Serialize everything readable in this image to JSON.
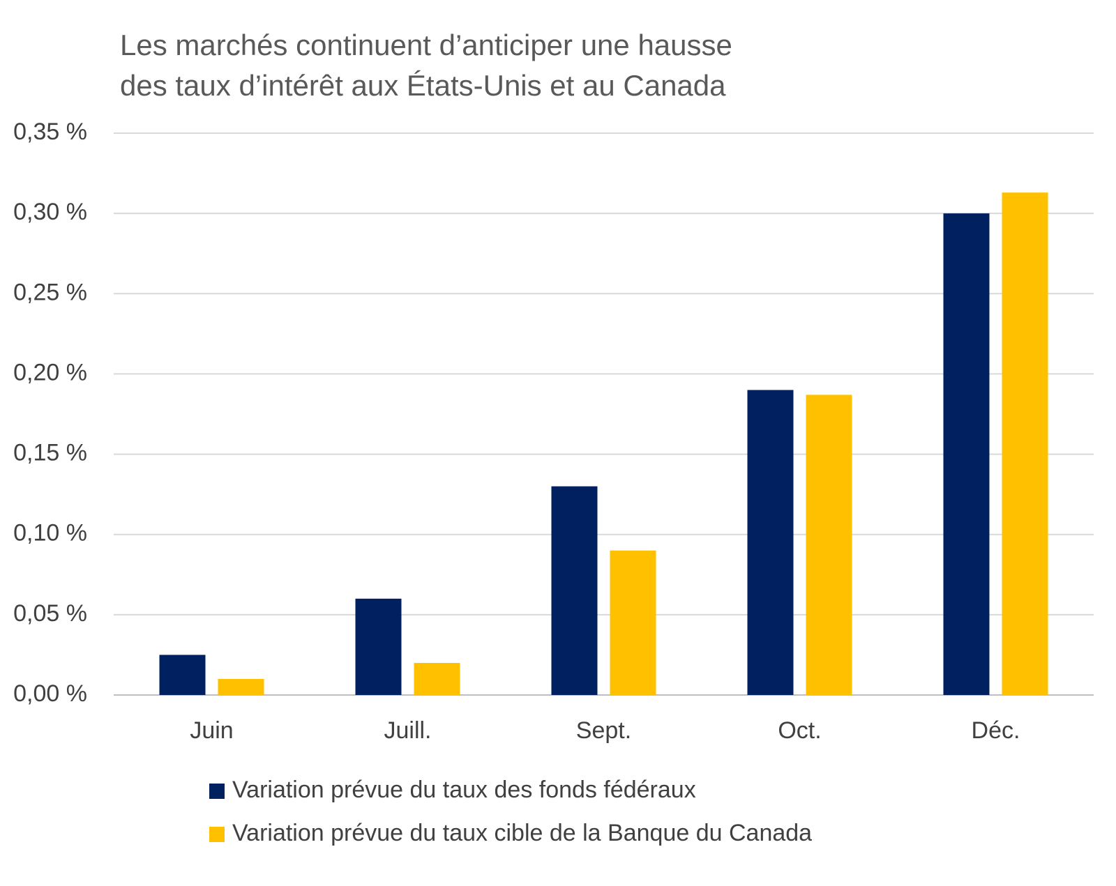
{
  "chart_data": {
    "type": "bar",
    "title": [
      "Les marchés continuent d’anticiper une hausse",
      "des taux d’intérêt aux États-Unis et au Canada"
    ],
    "categories": [
      "Juin",
      "Juill.",
      "Sept.",
      "Oct.",
      "Déc."
    ],
    "series": [
      {
        "name": "Variation prévue du taux des fonds fédéraux",
        "color": "#002060",
        "values": [
          0.025,
          0.06,
          0.13,
          0.19,
          0.3
        ]
      },
      {
        "name": "Variation prévue du taux cible de la Banque du Canada",
        "color": "#ffc000",
        "values": [
          0.01,
          0.02,
          0.09,
          0.187,
          0.313
        ]
      }
    ],
    "ylim": [
      0,
      0.35
    ],
    "yticks": [
      {
        "value": 0,
        "label": "0,00 %"
      },
      {
        "value": 0.05,
        "label": "0,05 %"
      },
      {
        "value": 0.1,
        "label": "0,10 %"
      },
      {
        "value": 0.15,
        "label": "0,15 %"
      },
      {
        "value": 0.2,
        "label": "0,20 %"
      },
      {
        "value": 0.25,
        "label": "0,25 %"
      },
      {
        "value": 0.3,
        "label": "0,30 %"
      },
      {
        "value": 0.35,
        "label": "0,35 %"
      }
    ],
    "grid": true,
    "legend": "bottom"
  }
}
